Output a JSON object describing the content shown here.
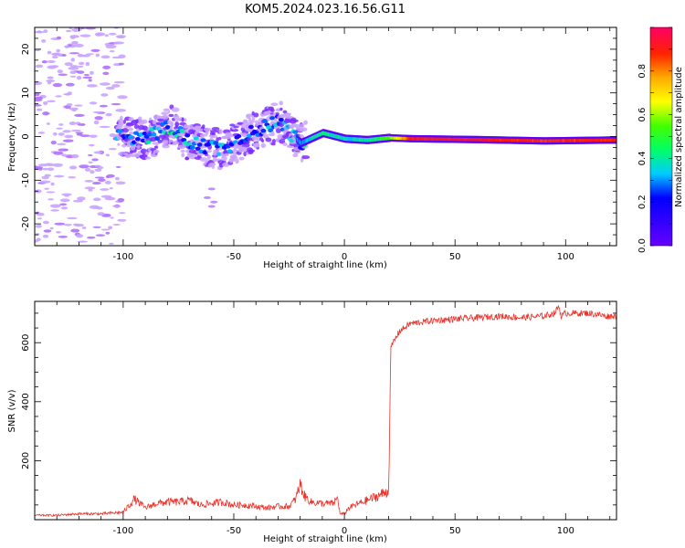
{
  "title": "KOM5.2024.023.16.56.G11",
  "colors": {
    "snr_line": "#e8322a",
    "cbar_stops": [
      "#6600ff",
      "#3300ff",
      "#0000ff",
      "#00ccff",
      "#00ff66",
      "#44ff00",
      "#ffff00",
      "#ffaa00",
      "#ff2200",
      "#ff0066"
    ]
  },
  "chart_data": [
    {
      "type": "heatmap",
      "xlabel": "Height of straight line (km)",
      "ylabel": "Frequency (Hz)",
      "xlim": [
        -140,
        123
      ],
      "ylim": [
        -25,
        25
      ],
      "xticks": [
        "-100",
        "-50",
        "0",
        "50",
        "100"
      ],
      "yticks": [
        "-20",
        "-10",
        "0",
        "10",
        "20"
      ],
      "colorbar": {
        "label": "Normalized spectral amplitude",
        "range": [
          0,
          1
        ],
        "ticks": [
          "0.0",
          "0.2",
          "0.4",
          "0.6",
          "0.8"
        ]
      },
      "ridge": [
        {
          "x": -100,
          "f": 0.0,
          "a": 0.25
        },
        {
          "x": -90,
          "f": -0.5,
          "a": 0.3
        },
        {
          "x": -78,
          "f": 2.5,
          "a": 0.35
        },
        {
          "x": -70,
          "f": -1.5,
          "a": 0.28
        },
        {
          "x": -55,
          "f": -3.0,
          "a": 0.25
        },
        {
          "x": -42,
          "f": 1.0,
          "a": 0.22
        },
        {
          "x": -30,
          "f": 3.5,
          "a": 0.3
        },
        {
          "x": -20,
          "f": -1.5,
          "a": 0.3
        },
        {
          "x": -10,
          "f": 0.8,
          "a": 0.45
        },
        {
          "x": 0,
          "f": -0.5,
          "a": 0.35
        },
        {
          "x": 10,
          "f": -0.8,
          "a": 0.4
        },
        {
          "x": 20,
          "f": -0.3,
          "a": 0.55
        },
        {
          "x": 30,
          "f": -0.5,
          "a": 0.9
        },
        {
          "x": 60,
          "f": -0.7,
          "a": 0.92
        },
        {
          "x": 90,
          "f": -1.0,
          "a": 0.88
        },
        {
          "x": 120,
          "f": -0.8,
          "a": 0.9
        }
      ]
    },
    {
      "type": "line",
      "xlabel": "Height of straight line (km)",
      "ylabel": "SNR (v/v)",
      "xlim": [
        -140,
        123
      ],
      "ylim": [
        0,
        740
      ],
      "xticks": [
        "-100",
        "-50",
        "0",
        "50",
        "100"
      ],
      "yticks": [
        "200",
        "400",
        "600"
      ],
      "series": [
        {
          "x": [
            -140,
            -130,
            -120,
            -110,
            -100,
            -96,
            -95,
            -90,
            -85,
            -80,
            -75,
            -70,
            -65,
            -60,
            -55,
            -50,
            -45,
            -40,
            -35,
            -30,
            -25,
            -22,
            -20,
            -18,
            -15,
            -10,
            -5,
            -3,
            -2,
            0,
            2,
            5,
            10,
            15,
            19,
            20,
            21,
            22,
            25,
            30,
            40,
            50,
            60,
            70,
            80,
            90,
            95,
            97,
            98,
            100,
            110,
            115,
            118,
            123
          ],
          "y": [
            15,
            15,
            20,
            20,
            25,
            60,
            70,
            40,
            55,
            60,
            60,
            65,
            50,
            55,
            60,
            50,
            50,
            45,
            40,
            45,
            45,
            70,
            120,
            80,
            60,
            55,
            55,
            75,
            20,
            20,
            40,
            50,
            65,
            80,
            95,
            100,
            580,
            600,
            640,
            665,
            675,
            680,
            685,
            690,
            685,
            690,
            700,
            725,
            690,
            700,
            700,
            695,
            690,
            690
          ]
        }
      ]
    }
  ]
}
